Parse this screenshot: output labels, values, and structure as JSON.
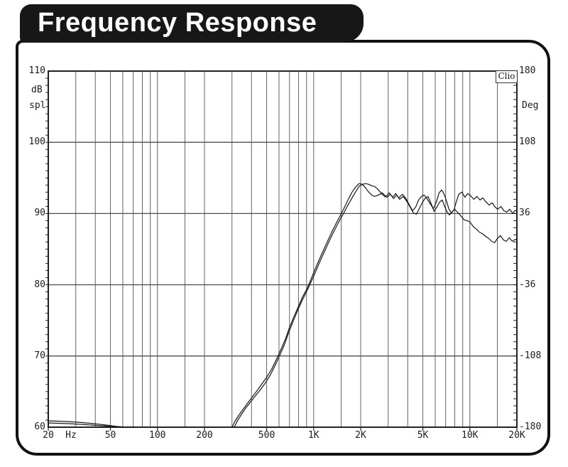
{
  "banner": {
    "title": "Frequency Response"
  },
  "watermark": "Clio",
  "axes": {
    "left": {
      "unit_top": "dB",
      "unit_bottom": "spl",
      "tick_labels": [
        "110",
        "100",
        "90",
        "80",
        "70",
        "60"
      ]
    },
    "right": {
      "unit": "Deg",
      "tick_labels": [
        "180",
        "108",
        "36",
        "-36",
        "-108",
        "-180"
      ]
    },
    "bottom": {
      "unit": "Hz",
      "tick_labels": [
        {
          "text": "20",
          "f": 20
        },
        {
          "text": "50",
          "f": 50
        },
        {
          "text": "100",
          "f": 100
        },
        {
          "text": "200",
          "f": 200
        },
        {
          "text": "500",
          "f": 500
        },
        {
          "text": "1K",
          "f": 1000
        },
        {
          "text": "2K",
          "f": 2000
        },
        {
          "text": "5K",
          "f": 5000
        },
        {
          "text": "10K",
          "f": 10000
        },
        {
          "text": "20K",
          "f": 20000
        }
      ]
    }
  },
  "colors": {
    "grid": "#636363",
    "major_grid": "#4e4e4e",
    "plot_border": "#222222",
    "curve": "#161616",
    "banner_bg": "#171717",
    "banner_text": "#ffffff"
  },
  "chart_data": {
    "type": "line",
    "title": "Frequency Response",
    "xscale": "log",
    "x_range": [
      20,
      20000
    ],
    "xlabel": "Hz",
    "y_left": {
      "label": "dB spl",
      "range": [
        60,
        110
      ],
      "ticks": [
        110,
        100,
        90,
        80,
        70,
        60
      ]
    },
    "y_right": {
      "label": "Deg",
      "range": [
        -180,
        180
      ],
      "ticks": [
        180,
        108,
        36,
        -36,
        -108,
        -180
      ]
    },
    "y_gridlines_db": [
      100,
      90,
      80,
      70
    ],
    "x_gridlines": [
      30,
      40,
      50,
      60,
      70,
      80,
      90,
      100,
      150,
      200,
      300,
      400,
      500,
      600,
      700,
      800,
      900,
      1000,
      1500,
      2000,
      3000,
      4000,
      5000,
      6000,
      7000,
      8000,
      9000,
      10000,
      15000
    ],
    "x_axis_ticks": [
      20,
      50,
      100,
      200,
      500,
      1000,
      2000,
      5000,
      10000,
      20000
    ],
    "minor_db_tick_step": 1,
    "legend": "none",
    "series": [
      {
        "name": "response-curve-a",
        "points": [
          [
            300,
            60
          ],
          [
            315,
            60.9
          ],
          [
            330,
            61.6
          ],
          [
            350,
            62.4
          ],
          [
            370,
            63.1
          ],
          [
            400,
            64.1
          ],
          [
            430,
            65.0
          ],
          [
            460,
            65.9
          ],
          [
            500,
            67.0
          ],
          [
            540,
            68.2
          ],
          [
            580,
            69.6
          ],
          [
            620,
            71.0
          ],
          [
            660,
            72.4
          ],
          [
            700,
            74.0
          ],
          [
            750,
            75.6
          ],
          [
            800,
            77.0
          ],
          [
            850,
            78.3
          ],
          [
            900,
            79.3
          ],
          [
            950,
            80.5
          ],
          [
            1000,
            81.7
          ],
          [
            1060,
            83.0
          ],
          [
            1120,
            84.2
          ],
          [
            1180,
            85.3
          ],
          [
            1250,
            86.5
          ],
          [
            1320,
            87.6
          ],
          [
            1400,
            88.7
          ],
          [
            1480,
            89.7
          ],
          [
            1560,
            90.7
          ],
          [
            1650,
            91.8
          ],
          [
            1750,
            92.9
          ],
          [
            1850,
            93.7
          ],
          [
            1950,
            94.2
          ],
          [
            2050,
            94.1
          ],
          [
            2150,
            93.6
          ],
          [
            2250,
            93.0
          ],
          [
            2350,
            92.6
          ],
          [
            2450,
            92.4
          ],
          [
            2600,
            92.6
          ],
          [
            2750,
            92.9
          ],
          [
            2900,
            92.4
          ],
          [
            3050,
            92.9
          ],
          [
            3200,
            92.3
          ],
          [
            3350,
            92.8
          ],
          [
            3500,
            92.2
          ],
          [
            3700,
            92.7
          ],
          [
            3900,
            92.1
          ],
          [
            4100,
            91.2
          ],
          [
            4300,
            90.4
          ],
          [
            4500,
            90.9
          ],
          [
            4700,
            91.9
          ],
          [
            4900,
            92.4
          ],
          [
            5100,
            92.6
          ],
          [
            5350,
            92.0
          ],
          [
            5600,
            91.3
          ],
          [
            5850,
            90.7
          ],
          [
            6100,
            91.6
          ],
          [
            6350,
            92.9
          ],
          [
            6600,
            93.3
          ],
          [
            6850,
            92.7
          ],
          [
            7100,
            91.7
          ],
          [
            7350,
            90.6
          ],
          [
            7600,
            90.1
          ],
          [
            7900,
            90.5
          ],
          [
            8200,
            91.7
          ],
          [
            8500,
            92.7
          ],
          [
            8900,
            93.0
          ],
          [
            9300,
            92.3
          ],
          [
            9700,
            92.8
          ],
          [
            10100,
            92.5
          ],
          [
            10600,
            92.0
          ],
          [
            11100,
            92.4
          ],
          [
            11600,
            91.9
          ],
          [
            12100,
            92.2
          ],
          [
            12700,
            91.6
          ],
          [
            13300,
            91.2
          ],
          [
            13900,
            91.5
          ],
          [
            14500,
            90.9
          ],
          [
            15100,
            90.6
          ],
          [
            15800,
            91.0
          ],
          [
            16500,
            90.4
          ],
          [
            17200,
            90.2
          ],
          [
            18000,
            90.6
          ],
          [
            18800,
            90.0
          ],
          [
            19400,
            90.4
          ],
          [
            20000,
            90.4
          ]
        ]
      },
      {
        "name": "response-curve-b",
        "points": [
          [
            310,
            60
          ],
          [
            325,
            60.9
          ],
          [
            345,
            61.8
          ],
          [
            365,
            62.6
          ],
          [
            390,
            63.4
          ],
          [
            420,
            64.3
          ],
          [
            450,
            65.1
          ],
          [
            490,
            66.2
          ],
          [
            530,
            67.4
          ],
          [
            570,
            68.8
          ],
          [
            610,
            70.2
          ],
          [
            650,
            71.6
          ],
          [
            690,
            73.2
          ],
          [
            740,
            74.9
          ],
          [
            790,
            76.4
          ],
          [
            840,
            77.7
          ],
          [
            890,
            78.8
          ],
          [
            940,
            79.9
          ],
          [
            1000,
            81.2
          ],
          [
            1060,
            82.5
          ],
          [
            1120,
            83.7
          ],
          [
            1180,
            84.8
          ],
          [
            1250,
            86.0
          ],
          [
            1320,
            87.1
          ],
          [
            1400,
            88.2
          ],
          [
            1480,
            89.2
          ],
          [
            1560,
            90.1
          ],
          [
            1650,
            91.1
          ],
          [
            1750,
            92.1
          ],
          [
            1850,
            93.0
          ],
          [
            1950,
            93.8
          ],
          [
            2050,
            94.1
          ],
          [
            2150,
            94.2
          ],
          [
            2250,
            94.1
          ],
          [
            2350,
            93.9
          ],
          [
            2450,
            93.8
          ],
          [
            2550,
            93.5
          ],
          [
            2650,
            93.1
          ],
          [
            2750,
            92.7
          ],
          [
            2850,
            92.4
          ],
          [
            2950,
            92.3
          ],
          [
            3100,
            92.7
          ],
          [
            3250,
            92.1
          ],
          [
            3400,
            92.6
          ],
          [
            3550,
            92.0
          ],
          [
            3750,
            92.4
          ],
          [
            3950,
            91.7
          ],
          [
            4150,
            90.9
          ],
          [
            4350,
            90.1
          ],
          [
            4550,
            89.9
          ],
          [
            4750,
            90.7
          ],
          [
            4950,
            91.5
          ],
          [
            5150,
            92.1
          ],
          [
            5400,
            92.4
          ],
          [
            5650,
            91.4
          ],
          [
            5900,
            90.3
          ],
          [
            6150,
            90.9
          ],
          [
            6400,
            91.6
          ],
          [
            6650,
            91.9
          ],
          [
            6900,
            91.0
          ],
          [
            7150,
            90.2
          ],
          [
            7400,
            89.8
          ],
          [
            7700,
            90.2
          ],
          [
            8000,
            90.6
          ],
          [
            8400,
            90.1
          ],
          [
            8800,
            89.6
          ],
          [
            9200,
            89.1
          ],
          [
            9600,
            89.0
          ],
          [
            10000,
            88.8
          ],
          [
            10500,
            88.2
          ],
          [
            11000,
            87.8
          ],
          [
            11500,
            87.4
          ],
          [
            12000,
            87.2
          ],
          [
            12600,
            86.8
          ],
          [
            13200,
            86.5
          ],
          [
            13800,
            86.1
          ],
          [
            14400,
            85.9
          ],
          [
            15000,
            86.5
          ],
          [
            15700,
            86.9
          ],
          [
            16400,
            86.3
          ],
          [
            17100,
            86.1
          ],
          [
            17900,
            86.6
          ],
          [
            18700,
            86.1
          ],
          [
            19300,
            86.3
          ],
          [
            20000,
            86.4
          ]
        ]
      },
      {
        "name": "noise-floor-tail-1",
        "points": [
          [
            20,
            60.9
          ],
          [
            26,
            60.8
          ],
          [
            31,
            60.7
          ],
          [
            37,
            60.55
          ],
          [
            43,
            60.4
          ],
          [
            49,
            60.25
          ],
          [
            55,
            60.1
          ],
          [
            61,
            60.02
          ],
          [
            64,
            60
          ]
        ]
      },
      {
        "name": "noise-floor-tail-2",
        "points": [
          [
            20,
            60.6
          ],
          [
            27,
            60.5
          ],
          [
            35,
            60.35
          ],
          [
            44,
            60.2
          ],
          [
            53,
            60.1
          ],
          [
            63,
            60.02
          ],
          [
            73,
            60
          ]
        ]
      }
    ],
    "annotations": {
      "watermark": "Clio"
    }
  }
}
